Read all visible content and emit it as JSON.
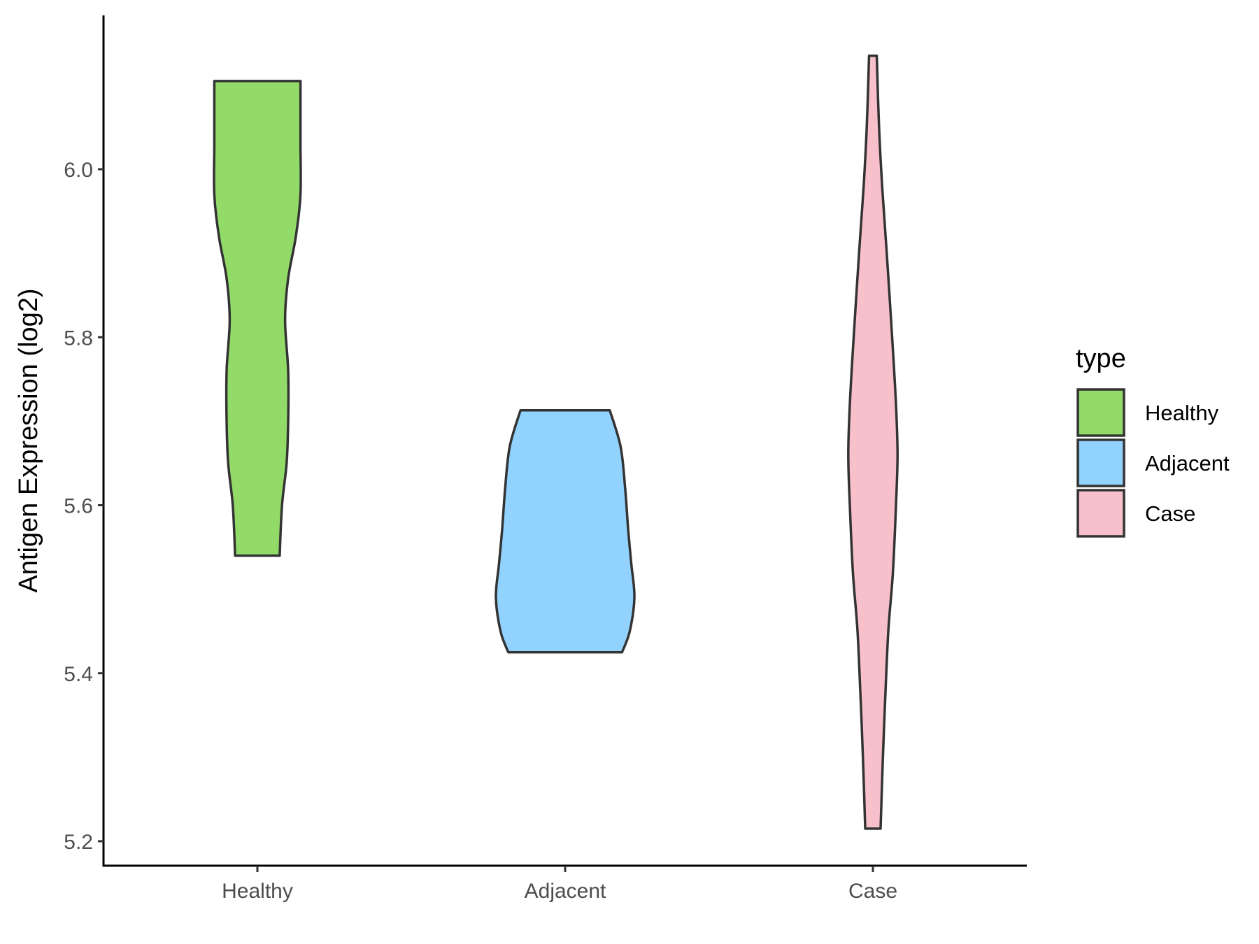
{
  "chart_data": {
    "type": "violin",
    "ylabel": "Antigen Expression (log2)",
    "xlabel": "",
    "categories": [
      "Healthy",
      "Adjacent",
      "Case"
    ],
    "ylim": [
      5.16,
      6.18
    ],
    "yticks": [
      5.2,
      5.4,
      5.6,
      5.8,
      6.0
    ],
    "ytick_labels": [
      "5.2",
      "5.4",
      "5.6",
      "5.8",
      "6.0"
    ],
    "grid": false,
    "legend": {
      "title": "type",
      "placement": "right",
      "entries": [
        "Healthy",
        "Adjacent",
        "Case"
      ]
    },
    "colors": [
      "#93DB69",
      "#92D2FF",
      "#F8C0CB"
    ],
    "series": [
      {
        "name": "Healthy",
        "min": 5.54,
        "max": 6.105,
        "profile": [
          [
            5.54,
            0.145
          ],
          [
            5.6,
            0.16
          ],
          [
            5.65,
            0.19
          ],
          [
            5.7,
            0.2
          ],
          [
            5.76,
            0.2
          ],
          [
            5.82,
            0.18
          ],
          [
            5.87,
            0.2
          ],
          [
            5.92,
            0.25
          ],
          [
            5.97,
            0.28
          ],
          [
            6.03,
            0.28
          ],
          [
            6.075,
            0.28
          ],
          [
            6.105,
            0.28
          ]
        ]
      },
      {
        "name": "Adjacent",
        "min": 5.425,
        "max": 5.713,
        "profile": [
          [
            5.425,
            0.37
          ],
          [
            5.45,
            0.42
          ],
          [
            5.49,
            0.45
          ],
          [
            5.53,
            0.43
          ],
          [
            5.57,
            0.41
          ],
          [
            5.62,
            0.39
          ],
          [
            5.67,
            0.36
          ],
          [
            5.713,
            0.29
          ]
        ]
      },
      {
        "name": "Case",
        "min": 5.215,
        "max": 6.135,
        "profile": [
          [
            5.215,
            0.05
          ],
          [
            5.3,
            0.065
          ],
          [
            5.37,
            0.08
          ],
          [
            5.45,
            0.1
          ],
          [
            5.52,
            0.13
          ],
          [
            5.6,
            0.15
          ],
          [
            5.66,
            0.16
          ],
          [
            5.72,
            0.15
          ],
          [
            5.8,
            0.125
          ],
          [
            5.9,
            0.09
          ],
          [
            5.98,
            0.06
          ],
          [
            6.05,
            0.04
          ],
          [
            6.135,
            0.025
          ]
        ]
      }
    ]
  }
}
